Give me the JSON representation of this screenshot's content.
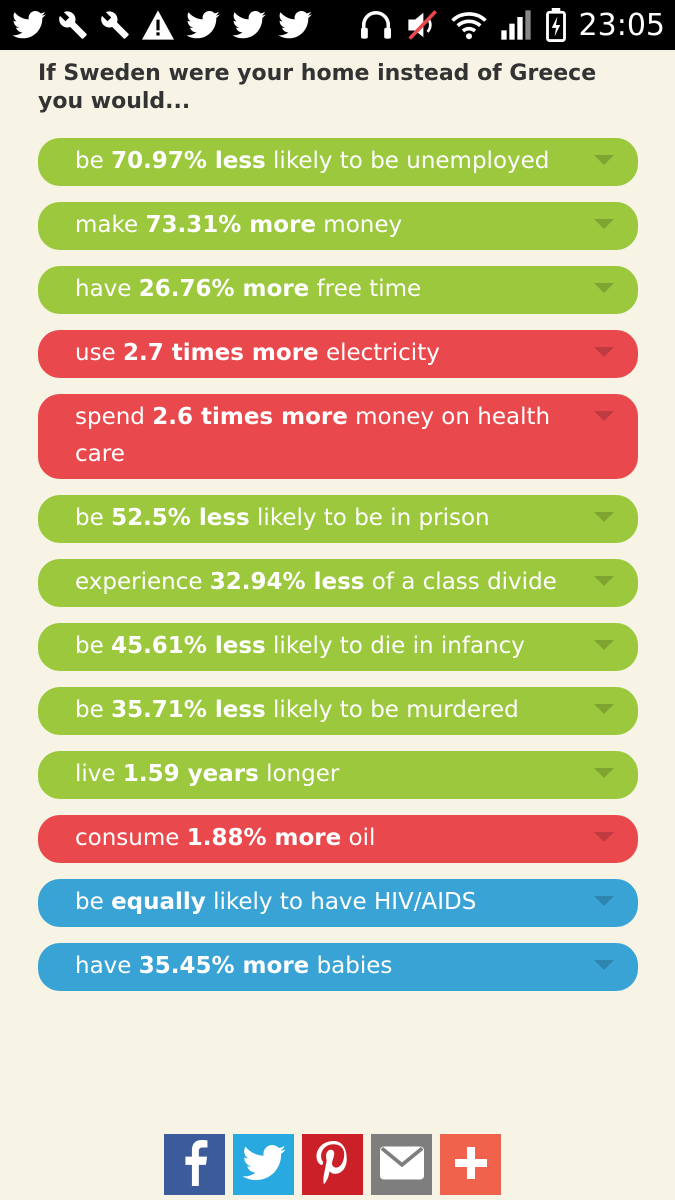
{
  "status_bar": {
    "time": "23:05",
    "left_icons": [
      "twitter-icon",
      "wrench-icon",
      "wrench-icon",
      "warning-icon",
      "twitter-icon",
      "twitter-icon",
      "twitter-icon"
    ],
    "right_icons": [
      "headphones-icon",
      "mute-icon",
      "wifi-icon",
      "signal-icon",
      "battery-icon"
    ]
  },
  "heading": "If Sweden were your home instead of Greece you would...",
  "items": [
    {
      "pre": "be ",
      "bold": "70.97% less",
      "post": " likely to be unemployed",
      "color": "green"
    },
    {
      "pre": "make ",
      "bold": "73.31% more",
      "post": " money",
      "color": "green"
    },
    {
      "pre": "have ",
      "bold": "26.76% more",
      "post": " free time",
      "color": "green"
    },
    {
      "pre": "use ",
      "bold": "2.7 times more",
      "post": " electricity",
      "color": "red"
    },
    {
      "pre": "spend ",
      "bold": "2.6 times more",
      "post": " money on health care",
      "color": "red"
    },
    {
      "pre": "be ",
      "bold": "52.5% less",
      "post": " likely to be in prison",
      "color": "green"
    },
    {
      "pre": "experience ",
      "bold": "32.94% less",
      "post": " of a class divide",
      "color": "green"
    },
    {
      "pre": "be ",
      "bold": "45.61% less",
      "post": " likely to die in infancy",
      "color": "green"
    },
    {
      "pre": "be ",
      "bold": "35.71% less",
      "post": " likely to be murdered",
      "color": "green"
    },
    {
      "pre": "live ",
      "bold": "1.59 years",
      "post": " longer",
      "color": "green"
    },
    {
      "pre": "consume ",
      "bold": "1.88% more",
      "post": " oil",
      "color": "red"
    },
    {
      "pre": "be ",
      "bold": "equally",
      "post": " likely to have HIV/AIDS",
      "color": "blue"
    },
    {
      "pre": "have ",
      "bold": "35.45% more",
      "post": " babies",
      "color": "blue"
    }
  ],
  "colors": {
    "green": "#9bc83c",
    "red": "#e9494d",
    "blue": "#3aa3d6"
  },
  "share": [
    {
      "name": "facebook-share-button",
      "icon": "facebook-icon"
    },
    {
      "name": "twitter-share-button",
      "icon": "twitter-icon"
    },
    {
      "name": "pinterest-share-button",
      "icon": "pinterest-icon"
    },
    {
      "name": "email-share-button",
      "icon": "email-icon"
    },
    {
      "name": "more-share-button",
      "icon": "plus-icon"
    }
  ]
}
